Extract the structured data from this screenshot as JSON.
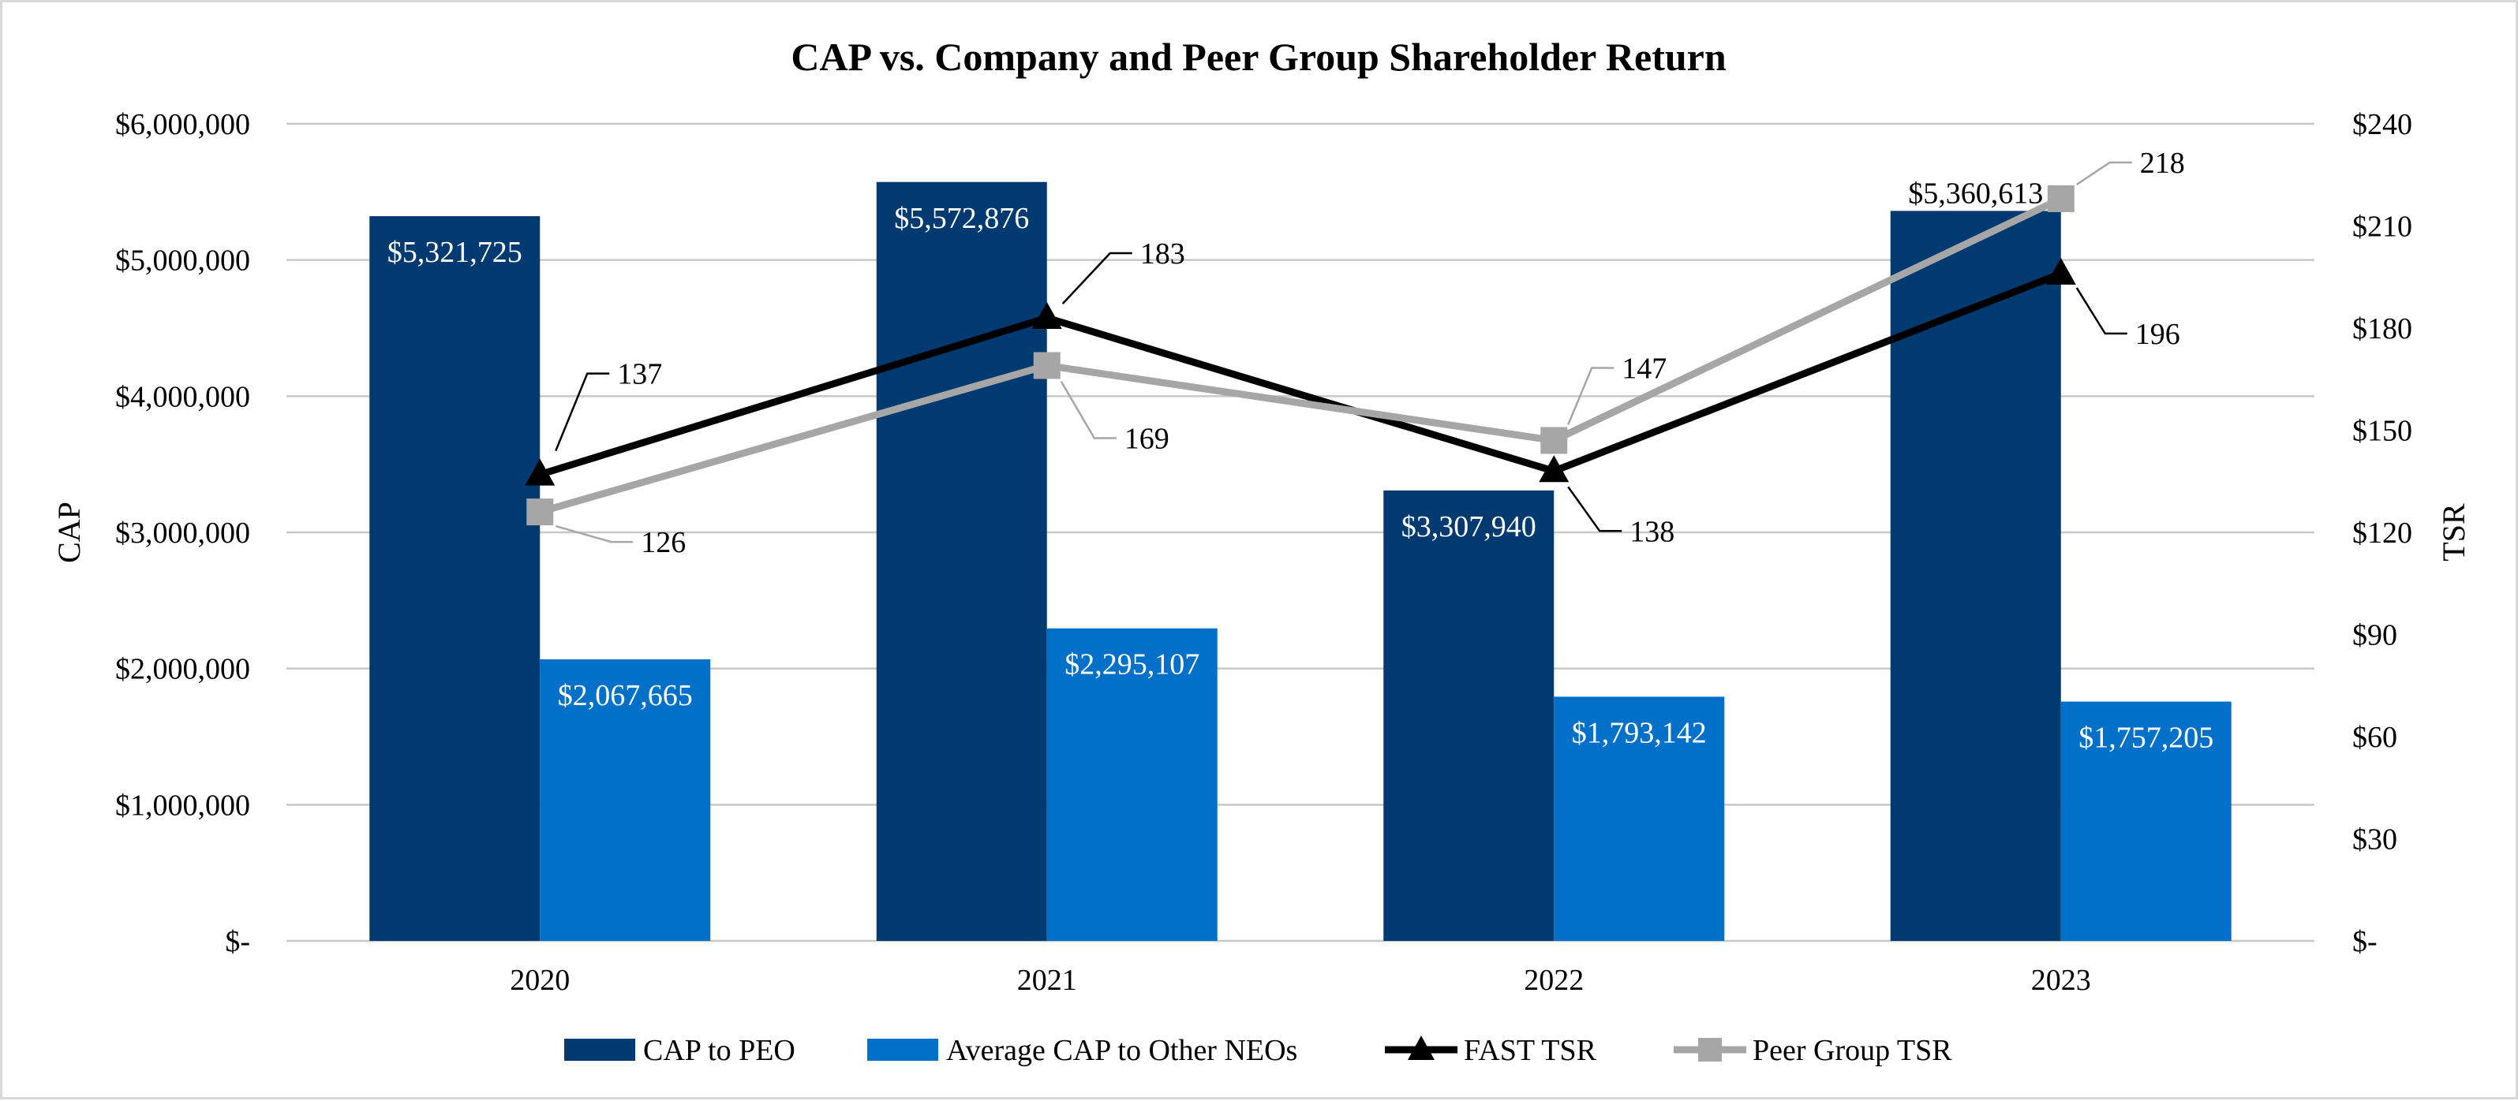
{
  "chart_data": {
    "type": "bar",
    "title": "CAP vs. Company and Peer Group Shareholder Return",
    "categories": [
      "2020",
      "2021",
      "2022",
      "2023"
    ],
    "y_left": {
      "label": "CAP",
      "min": 0,
      "max": 6000000,
      "ticks": [
        0,
        1000000,
        2000000,
        3000000,
        4000000,
        5000000,
        6000000
      ],
      "tick_labels": [
        "$-",
        "$1,000,000",
        "$2,000,000",
        "$3,000,000",
        "$4,000,000",
        "$5,000,000",
        "$6,000,000"
      ]
    },
    "y_right": {
      "label": "TSR",
      "min": 0,
      "max": 240,
      "ticks": [
        0,
        30,
        60,
        90,
        120,
        150,
        180,
        210,
        240
      ],
      "tick_labels": [
        "$-",
        "$30",
        "$60",
        "$90",
        "$120",
        "$150",
        "$180",
        "$210",
        "$240"
      ]
    },
    "bar_series": [
      {
        "name": "CAP to PEO",
        "color": "#003a70",
        "values": [
          5321725,
          5572876,
          3307940,
          5360613
        ],
        "labels": [
          "$5,321,725",
          "$5,572,876",
          "$3,307,940",
          "$5,360,613"
        ]
      },
      {
        "name": "Average CAP to Other NEOs",
        "color": "#0070c8",
        "values": [
          2067665,
          2295107,
          1793142,
          1757205
        ],
        "labels": [
          "$2,067,665",
          "$2,295,107",
          "$1,793,142",
          "$1,757,205"
        ]
      }
    ],
    "line_series": [
      {
        "name": "FAST TSR",
        "color": "#000000",
        "marker": "triangle",
        "values": [
          137,
          183,
          138,
          196
        ],
        "labels": [
          "137",
          "183",
          "138",
          "196"
        ]
      },
      {
        "name": "Peer Group TSR",
        "color": "#a6a6a6",
        "marker": "square",
        "values": [
          126,
          169,
          147,
          218
        ],
        "labels": [
          "126",
          "169",
          "147",
          "218"
        ]
      }
    ],
    "legend_position": "bottom",
    "grid": true
  }
}
